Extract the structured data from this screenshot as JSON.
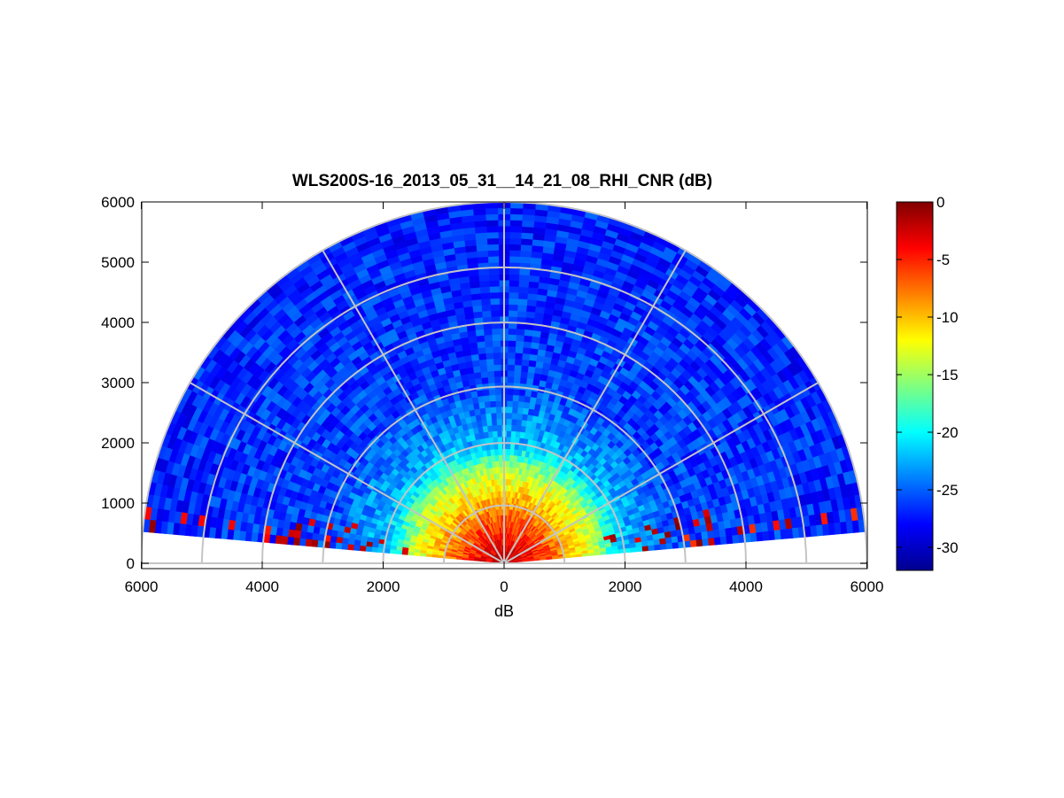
{
  "chart_data": {
    "type": "heatmap",
    "title": "WLS200S-16_2013_05_31__14_21_08_RHI_CNR (dB)",
    "xlabel": "dB",
    "ylabel": "",
    "xlim": [
      -6000,
      6000
    ],
    "ylim": [
      0,
      6000
    ],
    "x_ticks": [
      -6000,
      -4000,
      -2000,
      0,
      2000,
      4000,
      6000
    ],
    "x_tick_labels": [
      "6000",
      "4000",
      "2000",
      "0",
      "2000",
      "4000",
      "6000"
    ],
    "y_ticks": [
      0,
      1000,
      2000,
      3000,
      4000,
      5000,
      6000
    ],
    "y_tick_labels": [
      "0",
      "1000",
      "2000",
      "3000",
      "4000",
      "5000",
      "6000"
    ],
    "colorbar": {
      "colormap": "jet",
      "range": [
        -32,
        0
      ],
      "ticks": [
        0,
        -5,
        -10,
        -15,
        -20,
        -25,
        -30
      ],
      "tick_labels": [
        "0",
        "-5",
        "-10",
        "-15",
        "-20",
        "-25",
        "-30"
      ]
    },
    "grid": true,
    "polar_grid": {
      "range_rings": [
        1000,
        2000,
        3000,
        4000,
        5000,
        6000
      ],
      "spokes_deg": [
        0,
        30,
        60,
        90,
        120,
        150,
        180
      ]
    },
    "scan": {
      "elevation_deg": [
        5,
        175
      ],
      "max_range": 6000
    },
    "cnr_profile_db": [
      {
        "range": 0,
        "cnr": -2
      },
      {
        "range": 400,
        "cnr": -4
      },
      {
        "range": 900,
        "cnr": -8
      },
      {
        "range": 1500,
        "cnr": -14
      },
      {
        "range": 2000,
        "cnr": -22
      },
      {
        "range": 3000,
        "cnr": -26
      },
      {
        "range": 6000,
        "cnr": -27
      }
    ]
  }
}
